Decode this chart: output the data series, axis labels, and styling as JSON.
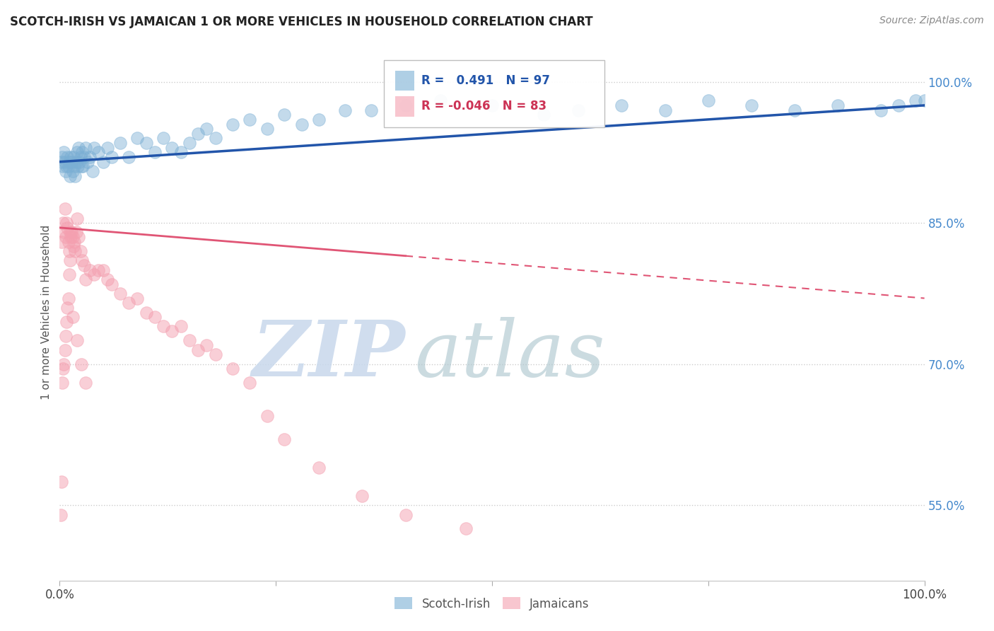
{
  "title": "SCOTCH-IRISH VS JAMAICAN 1 OR MORE VEHICLES IN HOUSEHOLD CORRELATION CHART",
  "source": "Source: ZipAtlas.com",
  "ylabel": "1 or more Vehicles in Household",
  "y_ticks": [
    55.0,
    70.0,
    85.0,
    100.0
  ],
  "x_range": [
    0.0,
    100.0
  ],
  "y_range": [
    47.0,
    104.0
  ],
  "legend_r_blue": "R =",
  "legend_v_blue": "0.491",
  "legend_n_blue": "N = 97",
  "legend_r_pink": "R = -0.046",
  "legend_n_pink": "N = 83",
  "blue_color": "#7BAFD4",
  "pink_color": "#F4A0B0",
  "watermark_zip_color": "#C8D8EC",
  "watermark_atlas_color": "#B0C8D0",
  "blue_trend_start_x": 0.0,
  "blue_trend_start_y": 91.5,
  "blue_trend_end_x": 100.0,
  "blue_trend_end_y": 97.5,
  "pink_solid_start_x": 0.0,
  "pink_solid_start_y": 84.5,
  "pink_solid_end_x": 40.0,
  "pink_solid_end_y": 81.5,
  "pink_dash_start_x": 40.0,
  "pink_dash_start_y": 81.5,
  "pink_dash_end_x": 100.0,
  "pink_dash_end_y": 77.0,
  "background_color": "#FFFFFF",
  "grid_color": "#CCCCCC",
  "blue_scatter_x": [
    0.2,
    0.3,
    0.4,
    0.5,
    0.6,
    0.7,
    0.8,
    0.9,
    1.0,
    1.1,
    1.2,
    1.3,
    1.4,
    1.5,
    1.6,
    1.7,
    1.8,
    1.9,
    2.0,
    2.1,
    2.2,
    2.3,
    2.4,
    2.5,
    2.6,
    2.7,
    2.8,
    3.0,
    3.2,
    3.5,
    3.8,
    4.0,
    4.5,
    5.0,
    5.5,
    6.0,
    7.0,
    8.0,
    9.0,
    10.0,
    11.0,
    12.0,
    13.0,
    14.0,
    15.0,
    16.0,
    17.0,
    18.0,
    20.0,
    22.0,
    24.0,
    26.0,
    28.0,
    30.0,
    33.0,
    36.0,
    40.0,
    44.0,
    50.0,
    56.0,
    60.0,
    65.0,
    70.0,
    75.0,
    80.0,
    85.0,
    90.0,
    95.0,
    97.0,
    99.0,
    100.0
  ],
  "blue_scatter_y": [
    91.5,
    92.0,
    91.0,
    92.5,
    91.5,
    90.5,
    91.0,
    92.0,
    91.0,
    91.5,
    90.0,
    92.0,
    91.5,
    90.5,
    92.0,
    91.0,
    90.0,
    91.5,
    92.5,
    91.0,
    93.0,
    91.5,
    92.0,
    91.0,
    92.5,
    91.0,
    92.0,
    93.0,
    91.5,
    92.0,
    90.5,
    93.0,
    92.5,
    91.5,
    93.0,
    92.0,
    93.5,
    92.0,
    94.0,
    93.5,
    92.5,
    94.0,
    93.0,
    92.5,
    93.5,
    94.5,
    95.0,
    94.0,
    95.5,
    96.0,
    95.0,
    96.5,
    95.5,
    96.0,
    97.0,
    97.0,
    97.5,
    98.0,
    97.5,
    96.5,
    97.0,
    97.5,
    97.0,
    98.0,
    97.5,
    97.0,
    97.5,
    97.0,
    97.5,
    98.0,
    98.0
  ],
  "pink_scatter_x": [
    0.2,
    0.4,
    0.5,
    0.6,
    0.7,
    0.8,
    0.9,
    1.0,
    1.1,
    1.2,
    1.3,
    1.4,
    1.5,
    1.6,
    1.7,
    1.8,
    1.9,
    2.0,
    2.2,
    2.4,
    2.6,
    2.8,
    3.0,
    3.5,
    4.0,
    4.5,
    5.0,
    5.5,
    6.0,
    7.0,
    8.0,
    9.0,
    10.0,
    11.0,
    12.0,
    13.0,
    14.0,
    15.0,
    16.0,
    17.0,
    18.0,
    20.0,
    22.0,
    24.0,
    26.0,
    30.0,
    35.0,
    40.0,
    47.0
  ],
  "pink_scatter_y": [
    83.0,
    85.0,
    84.0,
    86.5,
    83.5,
    85.0,
    84.5,
    83.0,
    82.0,
    84.0,
    83.5,
    84.0,
    83.5,
    82.5,
    83.0,
    82.0,
    84.0,
    85.5,
    83.5,
    82.0,
    81.0,
    80.5,
    79.0,
    80.0,
    79.5,
    80.0,
    80.0,
    79.0,
    78.5,
    77.5,
    76.5,
    77.0,
    75.5,
    75.0,
    74.0,
    73.5,
    74.0,
    72.5,
    71.5,
    72.0,
    71.0,
    69.5,
    68.0,
    64.5,
    62.0,
    59.0,
    56.0,
    54.0,
    52.5
  ],
  "extra_pink_x": [
    0.1,
    0.2,
    0.3,
    0.4,
    0.5,
    0.6,
    0.7,
    0.8,
    0.9,
    1.0,
    1.1,
    1.2,
    1.5,
    2.0,
    2.5,
    3.0
  ],
  "extra_pink_y": [
    54.0,
    57.5,
    68.0,
    69.5,
    70.0,
    71.5,
    73.0,
    74.5,
    76.0,
    77.0,
    79.5,
    81.0,
    75.0,
    72.5,
    70.0,
    68.0
  ]
}
